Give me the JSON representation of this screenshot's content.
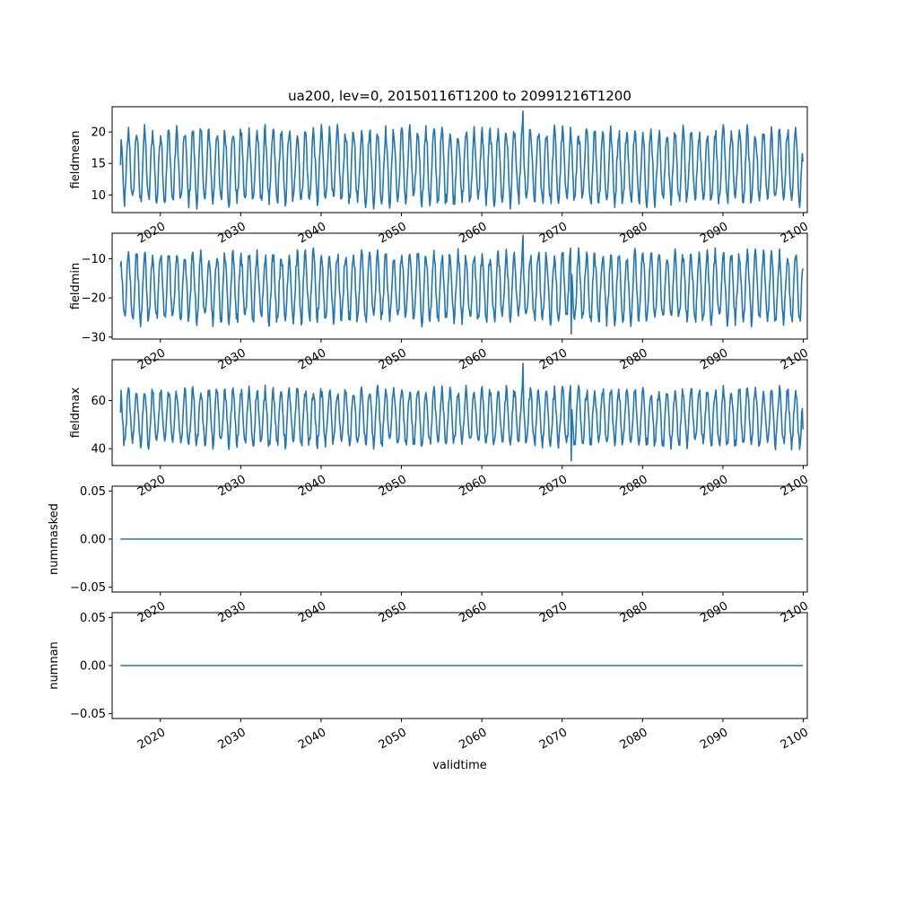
{
  "figure": {
    "title": "ua200, lev=0, 20150116T1200 to 20991216T1200",
    "line_color": "#1f77b4"
  },
  "chart_data": [
    {
      "type": "line",
      "name": "fieldmean",
      "ylabel": "fieldmean",
      "xlabel": "",
      "title": "ua200, lev=0, 20150116T1200 to 20991216T1200",
      "xlim": [
        2014.0,
        2100.5
      ],
      "ylim": [
        7.2,
        24.0
      ],
      "yticks": [
        10,
        15,
        20
      ],
      "ytick_labels": [
        "10",
        "15",
        "20"
      ],
      "xtick_values": [
        2020,
        2030,
        2040,
        2050,
        2060,
        2070,
        2080,
        2090,
        2100
      ],
      "xtick_labels": [
        "2020",
        "2030",
        "2040",
        "2050",
        "2060",
        "2070",
        "2080",
        "2090",
        "2100"
      ],
      "x_range": [
        2015.04,
        2099.96
      ],
      "grid": false,
      "series": [
        {
          "monthly_min": 9.0,
          "monthly_max": 20.0,
          "start_value": 14.7,
          "end_value": 15.3,
          "peak_value": 23.3
        }
      ]
    },
    {
      "type": "line",
      "name": "fieldmin",
      "ylabel": "fieldmin",
      "xlabel": "",
      "xlim": [
        2014.0,
        2100.5
      ],
      "ylim": [
        -30.5,
        -3.5
      ],
      "yticks": [
        -30,
        -20,
        -10
      ],
      "ytick_labels": [
        "−30",
        "−20",
        "−10"
      ],
      "xtick_values": [
        2020,
        2030,
        2040,
        2050,
        2060,
        2070,
        2080,
        2090,
        2100
      ],
      "xtick_labels": [
        "2020",
        "2030",
        "2040",
        "2050",
        "2060",
        "2070",
        "2080",
        "2090",
        "2100"
      ],
      "x_range": [
        2015.04,
        2099.96
      ],
      "grid": false,
      "series": [
        {
          "monthly_min": -25.5,
          "monthly_max": -9.0,
          "start_value": -12.0,
          "end_value": -12.5,
          "peak_value": -4.0,
          "trough_value": -29.2
        }
      ]
    },
    {
      "type": "line",
      "name": "fieldmax",
      "ylabel": "fieldmax",
      "xlabel": "",
      "xlim": [
        2014.0,
        2100.5
      ],
      "ylim": [
        33.0,
        77.0
      ],
      "yticks": [
        40,
        60
      ],
      "ytick_labels": [
        "40",
        "60"
      ],
      "xtick_values": [
        2020,
        2030,
        2040,
        2050,
        2060,
        2070,
        2080,
        2090,
        2100
      ],
      "xtick_labels": [
        "2020",
        "2030",
        "2040",
        "2050",
        "2060",
        "2070",
        "2080",
        "2090",
        "2100"
      ],
      "x_range": [
        2015.04,
        2099.96
      ],
      "grid": false,
      "series": [
        {
          "monthly_min": 42.0,
          "monthly_max": 64.0,
          "start_value": 55.0,
          "end_value": 48.0,
          "peak_value": 75.5,
          "trough_value": 35.0
        }
      ]
    },
    {
      "type": "line",
      "name": "nummasked",
      "ylabel": "nummasked",
      "xlabel": "",
      "xlim": [
        2014.0,
        2100.5
      ],
      "ylim": [
        -0.055,
        0.055
      ],
      "yticks": [
        -0.05,
        0.0,
        0.05
      ],
      "ytick_labels": [
        "−0.05",
        "0.00",
        "0.05"
      ],
      "xtick_values": [
        2020,
        2030,
        2040,
        2050,
        2060,
        2070,
        2080,
        2090,
        2100
      ],
      "xtick_labels": [
        "2020",
        "2030",
        "2040",
        "2050",
        "2060",
        "2070",
        "2080",
        "2090",
        "2100"
      ],
      "x_range": [
        2015.04,
        2099.96
      ],
      "grid": false,
      "series": [
        {
          "constant": 0.0
        }
      ]
    },
    {
      "type": "line",
      "name": "numnan",
      "ylabel": "numnan",
      "xlabel": "validtime",
      "xlim": [
        2014.0,
        2100.5
      ],
      "ylim": [
        -0.055,
        0.055
      ],
      "yticks": [
        -0.05,
        0.0,
        0.05
      ],
      "ytick_labels": [
        "−0.05",
        "0.00",
        "0.05"
      ],
      "xtick_values": [
        2020,
        2030,
        2040,
        2050,
        2060,
        2070,
        2080,
        2090,
        2100
      ],
      "xtick_labels": [
        "2020",
        "2030",
        "2040",
        "2050",
        "2060",
        "2070",
        "2080",
        "2090",
        "2100"
      ],
      "x_range": [
        2015.04,
        2099.96
      ],
      "grid": false,
      "series": [
        {
          "constant": 0.0
        }
      ]
    }
  ]
}
